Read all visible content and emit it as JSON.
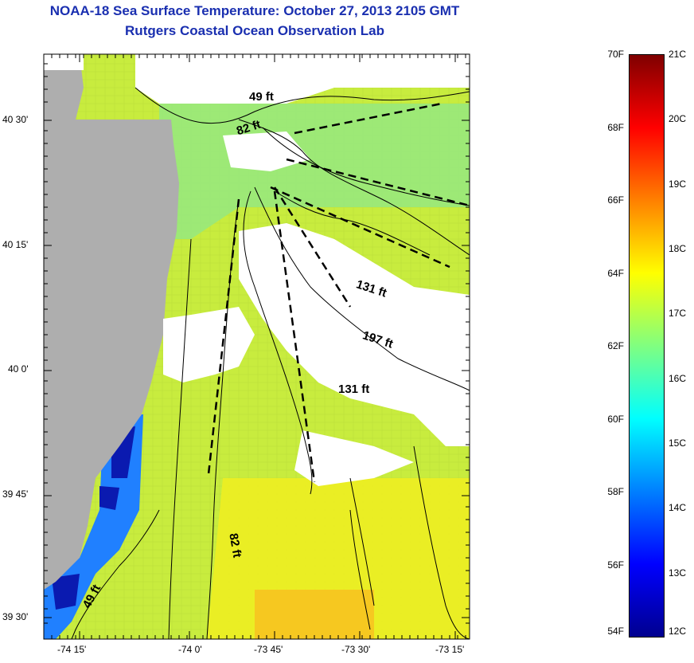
{
  "header": {
    "title": "NOAA-18 Sea Surface Temperature:  October 27, 2013 2105 GMT",
    "subtitle": "Rutgers Coastal Ocean Observation Lab"
  },
  "map": {
    "lon_ticks": [
      "-74 15'",
      "-74 0'",
      "-73 45'",
      "-73 30'",
      "-73 15'"
    ],
    "lat_ticks": [
      "40 30'",
      "40 15'",
      "40 0'",
      "39 45'",
      "39 30'"
    ],
    "depth_labels": [
      "49 ft",
      "82 ft",
      "131 ft",
      "197 ft",
      "131 ft",
      "82 ft",
      "49 ft"
    ],
    "colors": {
      "land": "#aeaeae",
      "cloud": "#ffffff"
    }
  },
  "colorbar": {
    "fahrenheit": [
      "70F",
      "68F",
      "66F",
      "64F",
      "62F",
      "60F",
      "58F",
      "56F",
      "54F"
    ],
    "celsius": [
      "21C",
      "20C",
      "19C",
      "18C",
      "17C",
      "16C",
      "15C",
      "14C",
      "13C",
      "12C"
    ],
    "stops": [
      "#7f0000",
      "#ff0000",
      "#ff8000",
      "#ffff00",
      "#80ff80",
      "#00ffff",
      "#0080ff",
      "#0000ff",
      "#00008f"
    ]
  }
}
